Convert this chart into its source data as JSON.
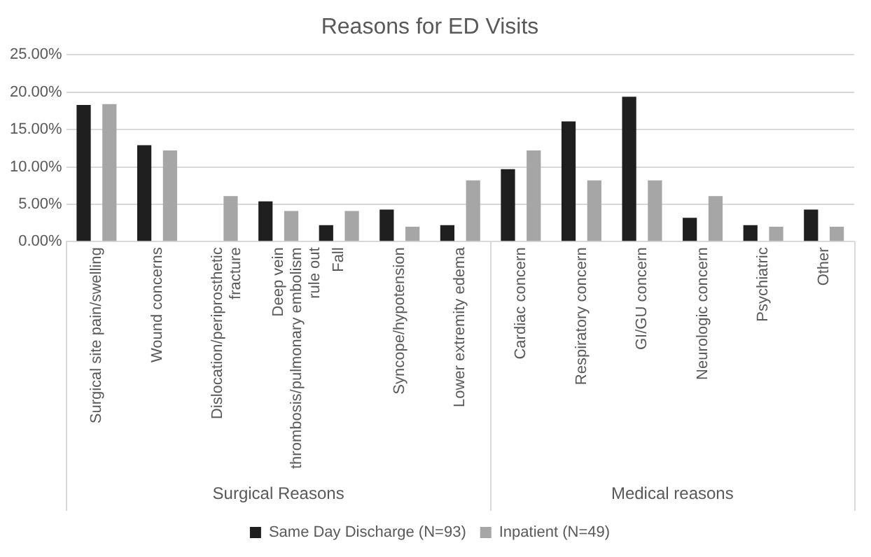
{
  "chart_data": {
    "type": "bar",
    "title": "Reasons for ED Visits",
    "categories": [
      "Surgical site pain/swelling",
      "Wound concerns",
      "Dislocation/periprosthetic fracture",
      "Deep vein thrombosis/pulmonary embolism rule out",
      "Fall",
      "Syncope/hypotension",
      "Lower extremity edema",
      "Cardiac concern",
      "Respiratory concern",
      "GI/GU concern",
      "Neurologic concern",
      "Psychiatric",
      "Other"
    ],
    "series": [
      {
        "name": "Same Day Discharge (N=93)",
        "color": "#1f1f1f",
        "values": [
          18.3,
          12.9,
          0,
          5.4,
          2.2,
          4.3,
          2.2,
          9.7,
          16.1,
          19.4,
          3.2,
          2.2,
          4.3
        ]
      },
      {
        "name": "Inpatient (N=49)",
        "color": "#a6a6a6",
        "values": [
          18.4,
          12.2,
          6.1,
          4.1,
          4.1,
          2.0,
          8.2,
          12.2,
          8.2,
          8.2,
          6.1,
          2.0,
          2.0
        ]
      }
    ],
    "annotations": [
      "Surgical Reasons",
      "Medical reasons"
    ],
    "ylim": [
      0,
      25
    ],
    "yticks": [
      {
        "value": 0,
        "label": "0.00%"
      },
      {
        "value": 5,
        "label": "5.00%"
      },
      {
        "value": 10,
        "label": "10.00%"
      },
      {
        "value": 15,
        "label": "15.00%"
      },
      {
        "value": 20,
        "label": "20.00%"
      },
      {
        "value": 25,
        "label": "25.00%"
      }
    ],
    "grid": "y",
    "legend": "bottom"
  }
}
